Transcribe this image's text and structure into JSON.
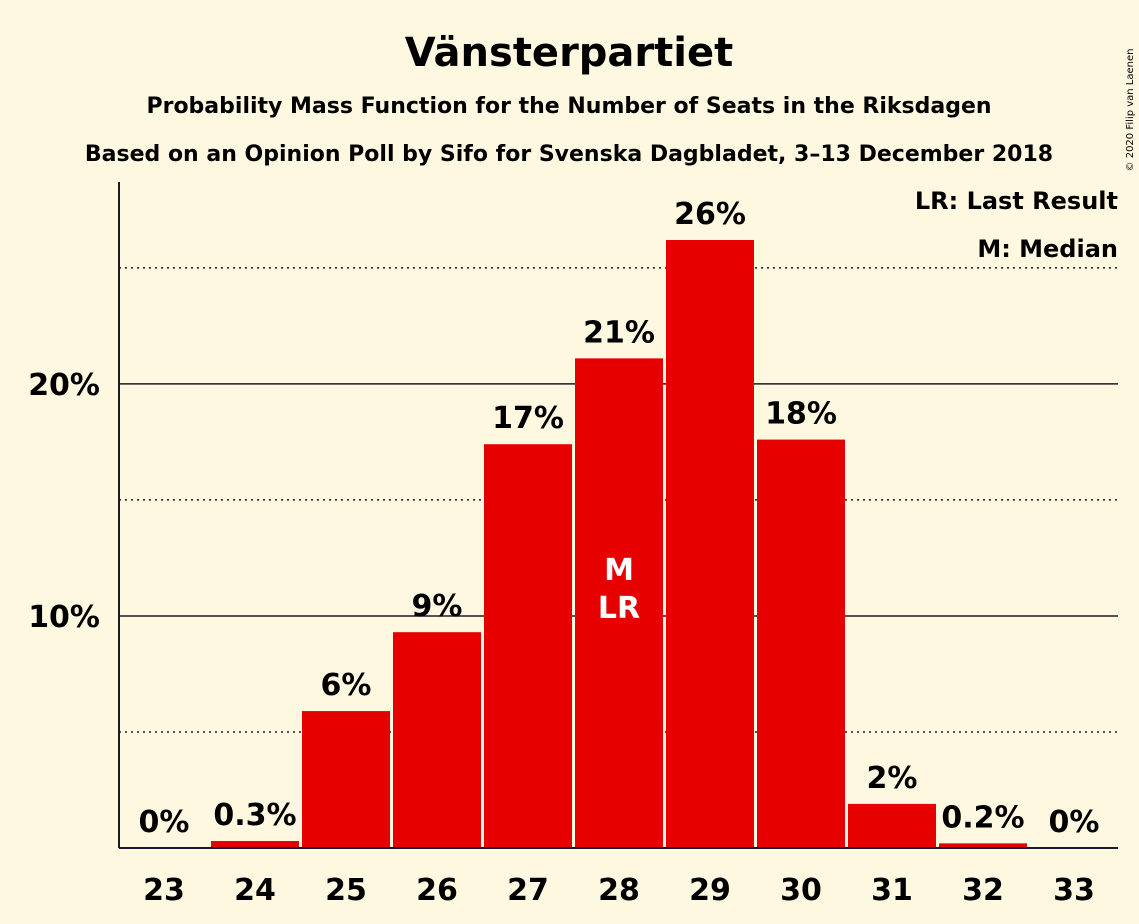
{
  "chart_data": {
    "type": "bar",
    "title": "Vänsterpartiet",
    "subtitle1": "Probability Mass Function for the Number of Seats in the Riksdagen",
    "subtitle2": "Based on an Opinion Poll by Sifo for Svenska Dagbladet, 3–13 December 2018",
    "categories": [
      "23",
      "24",
      "25",
      "26",
      "27",
      "28",
      "29",
      "30",
      "31",
      "32",
      "33"
    ],
    "values": [
      0,
      0.3,
      5.9,
      9.3,
      17.4,
      21.1,
      26.2,
      17.6,
      1.9,
      0.2,
      0
    ],
    "data_labels": [
      "0%",
      "0.3%",
      "6%",
      "9%",
      "17%",
      "21%",
      "26%",
      "18%",
      "2%",
      "0.2%",
      "0%"
    ],
    "ylim": [
      0,
      28.7
    ],
    "yticks": [
      {
        "value": 10,
        "label": "10%"
      },
      {
        "value": 20,
        "label": "20%"
      }
    ],
    "minor_gridlines": [
      5,
      15,
      25
    ],
    "bar_color": "#e60000",
    "median_category": "28",
    "last_result_category": "28",
    "markers": {
      "median": "M",
      "last_result": "LR"
    },
    "legend": [
      "LR: Last Result",
      "M: Median"
    ],
    "legend_position": "top-right",
    "copyright": "© 2020 Filip van Laenen"
  }
}
